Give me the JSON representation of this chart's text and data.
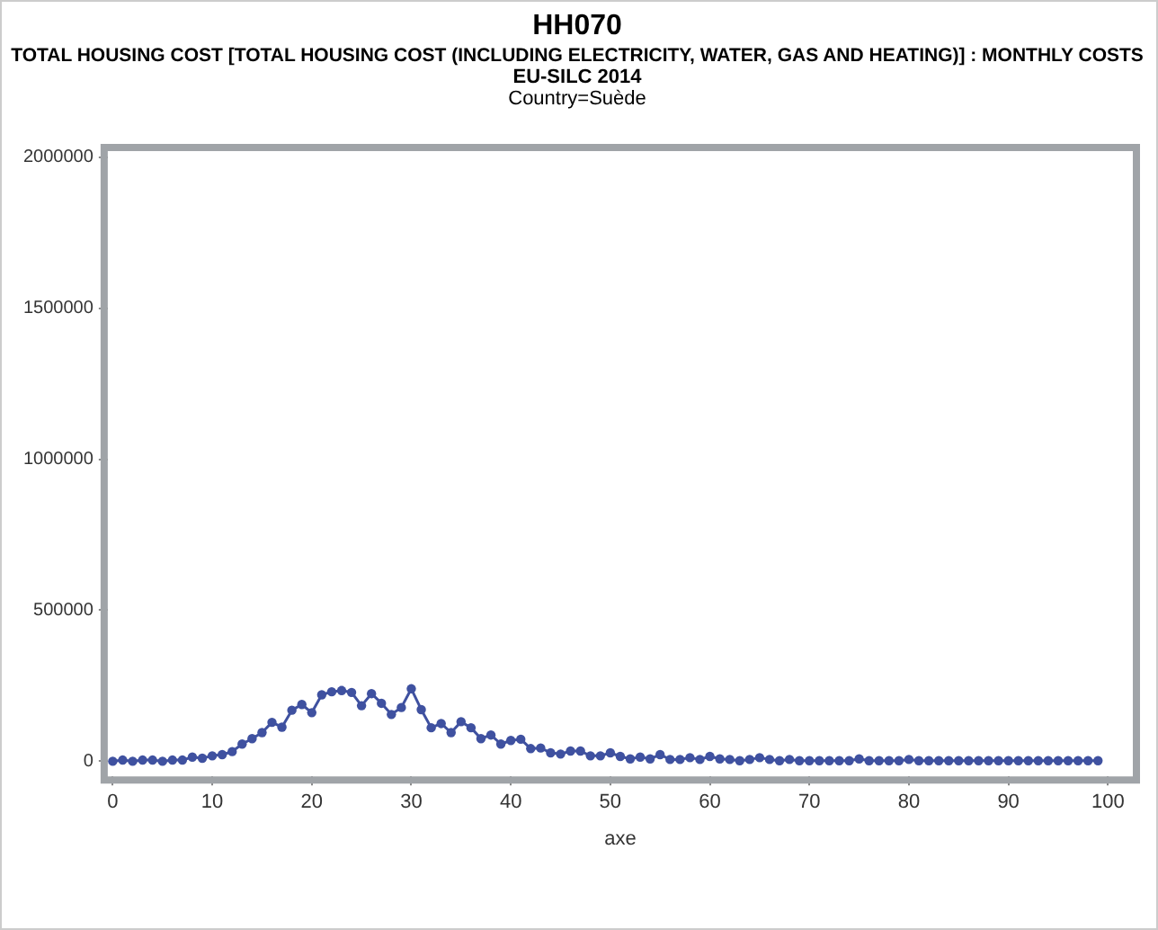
{
  "chart_data": {
    "type": "line",
    "title": "HH070",
    "subtitle": "TOTAL HOUSING COST [TOTAL HOUSING COST (INCLUDING ELECTRICITY, WATER, GAS AND HEATING)] : MONTHLY COSTS",
    "annotations": [
      "EU-SILC 2014",
      "Country=Suède"
    ],
    "xlabel": "axe",
    "x": [
      0,
      1,
      2,
      3,
      4,
      5,
      6,
      7,
      8,
      9,
      10,
      11,
      12,
      13,
      14,
      15,
      16,
      17,
      18,
      19,
      20,
      21,
      22,
      23,
      24,
      25,
      26,
      27,
      28,
      29,
      30,
      31,
      32,
      33,
      34,
      35,
      36,
      37,
      38,
      39,
      40,
      41,
      42,
      43,
      44,
      45,
      46,
      47,
      48,
      49,
      50,
      51,
      52,
      53,
      54,
      55,
      56,
      57,
      58,
      59,
      60,
      61,
      62,
      63,
      64,
      65,
      66,
      67,
      68,
      69,
      70,
      71,
      72,
      73,
      74,
      75,
      76,
      77,
      78,
      79,
      80,
      81,
      82,
      83,
      84,
      85,
      86,
      87,
      88,
      89,
      90,
      91,
      92,
      93,
      94,
      95,
      96,
      97,
      98,
      99
    ],
    "series": [
      {
        "color": "#3f51a0",
        "values": [
          0,
          4000,
          0,
          4000,
          4000,
          0,
          4000,
          4000,
          14000,
          10000,
          18000,
          22000,
          32000,
          57000,
          75000,
          95000,
          129000,
          113000,
          169000,
          188000,
          161000,
          220000,
          230000,
          234000,
          228000,
          184000,
          224000,
          192000,
          155000,
          178000,
          240000,
          171000,
          111000,
          125000,
          95000,
          131000,
          111000,
          75000,
          87000,
          57000,
          69000,
          73000,
          42000,
          44000,
          28000,
          24000,
          34000,
          34000,
          18000,
          18000,
          28000,
          16000,
          8000,
          14000,
          8000,
          22000,
          6000,
          6000,
          12000,
          6000,
          16000,
          8000,
          6000,
          2000,
          6000,
          12000,
          6000,
          2000,
          6000,
          2000,
          2000,
          2000,
          2000,
          2000,
          2000,
          8000,
          2000,
          2000,
          2000,
          2000,
          6000,
          2000,
          2000,
          2000,
          2000,
          2000,
          2000,
          2000,
          2000,
          2000,
          2000,
          2000,
          2000,
          2000,
          2000,
          2000,
          2000,
          2000,
          2000,
          2000
        ]
      }
    ],
    "xlim": [
      -0.5,
      102.5
    ],
    "ylim": [
      -50000,
      2020000
    ],
    "xticks": [
      0,
      10,
      20,
      30,
      40,
      50,
      60,
      70,
      80,
      90,
      100
    ],
    "yticks": [
      0,
      500000,
      1000000,
      1500000,
      2000000
    ],
    "grid": false,
    "legend": false,
    "marker": "circle",
    "line_style": "solid"
  }
}
